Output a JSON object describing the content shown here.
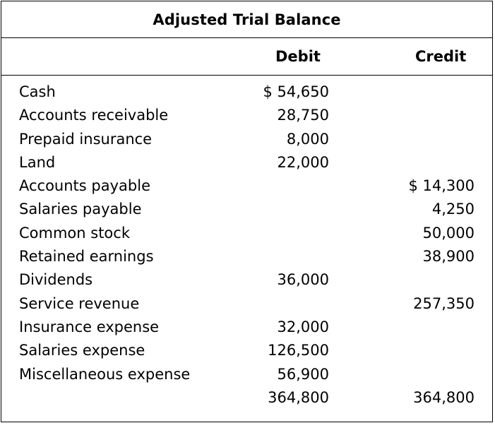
{
  "title": "Adjusted Trial Balance",
  "headers": {
    "debit": "Debit",
    "credit": "Credit"
  },
  "rows": [
    {
      "label": "Cash",
      "debit": "$ 54,650",
      "credit": ""
    },
    {
      "label": "Accounts receivable",
      "debit": "28,750",
      "credit": ""
    },
    {
      "label": "Prepaid insurance",
      "debit": "8,000",
      "credit": ""
    },
    {
      "label": "Land",
      "debit": "22,000",
      "credit": ""
    },
    {
      "label": "Accounts payable",
      "debit": "",
      "credit": "$ 14,300"
    },
    {
      "label": "Salaries payable",
      "debit": "",
      "credit": "4,250"
    },
    {
      "label": "Common stock",
      "debit": "",
      "credit": "50,000"
    },
    {
      "label": "Retained earnings",
      "debit": "",
      "credit": "38,900"
    },
    {
      "label": "Dividends",
      "debit": "36,000",
      "credit": ""
    },
    {
      "label": "Service revenue",
      "debit": "",
      "credit": "257,350"
    },
    {
      "label": "Insurance expense",
      "debit": "32,000",
      "credit": ""
    },
    {
      "label": "Salaries expense",
      "debit": "126,500",
      "credit": ""
    },
    {
      "label": "Miscellaneous expense",
      "debit": "56,900",
      "credit": ""
    },
    {
      "label": "",
      "debit": "364,800",
      "credit": "364,800"
    }
  ]
}
